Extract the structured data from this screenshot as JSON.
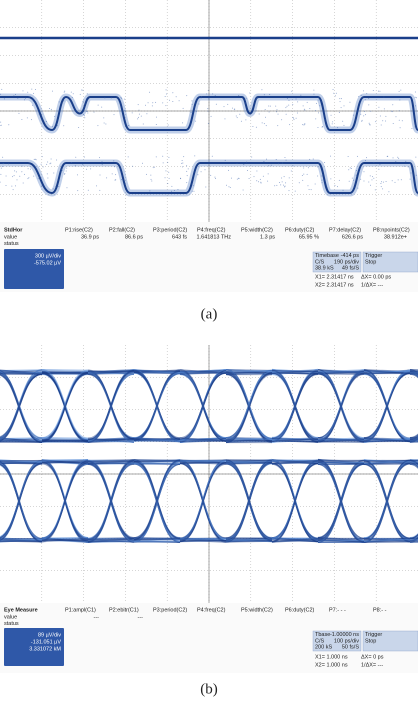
{
  "panels": [
    {
      "label": "(a)",
      "table_title": "StdHor",
      "columns": [
        "P1:rise(C2)",
        "P2:fall(C2)",
        "P3:period(C2)",
        "P4:freq(C2)",
        "P5:width(C2)",
        "P6:duty(C2)",
        "P7:delay(C2)",
        "P8:npoints(C2)"
      ],
      "rows": [
        {
          "name": "value",
          "cells": [
            "36.9 ps",
            "86.6 ps",
            "643 fs",
            "1.641813 THz",
            "1.3 ps",
            "65.95 %",
            "626.6 ps",
            "38.912e+"
          ]
        },
        {
          "name": "status"
        }
      ],
      "channel": [
        "300 µV/div",
        "-575.02 µV"
      ],
      "timebase": {
        "title": "Timebase",
        "offset": "-414 ps",
        "lines": [
          [
            "C/S",
            "190 ps/div"
          ],
          [
            "38.9 kS",
            "49 fs/S"
          ]
        ]
      },
      "trigger": {
        "title": "Trigger",
        "mode": "Stop"
      },
      "cursors": [
        [
          "X1= 2.31417 ns",
          "ΔX= 0.00 ps"
        ],
        [
          "X2= 2.31417 ns",
          "1/ΔX= ---"
        ]
      ]
    },
    {
      "label": "(b)",
      "table_title": "Eye Measure",
      "columns": [
        "P1:ampl(C1)",
        "P2:ebitr(C1)",
        "P3:period(C2)",
        "P4:freq(C2)",
        "P5:width(C2)",
        "P6:duty(C2)",
        "P7:- - -",
        "P8:- -"
      ],
      "rows": [
        {
          "name": "value",
          "cells": [
            "---",
            "---",
            null,
            null,
            null,
            null,
            null,
            null
          ]
        },
        {
          "name": "status"
        }
      ],
      "channel": [
        "89 µV/div",
        "-131.051 µV",
        "3.331072 kM"
      ],
      "timebase": {
        "title": "Tbase",
        "offset": "-1.00000 ns",
        "lines": [
          [
            "C/S",
            "100 ps/div"
          ],
          [
            "200 kS",
            "50 fs/S"
          ]
        ]
      },
      "trigger": {
        "title": "Trigger",
        "mode": "Stop"
      },
      "cursors": [
        [
          "X1= 1.000 ns",
          "ΔX= 0 ps"
        ],
        [
          "X2= 1.000 ns",
          "1/ΔX= ---"
        ]
      ]
    }
  ]
}
